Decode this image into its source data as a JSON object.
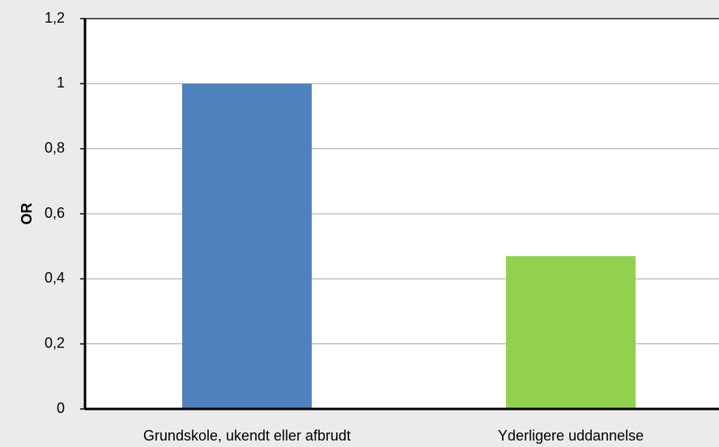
{
  "chart_data": {
    "type": "bar",
    "y_label": "OR",
    "categories": [
      "Grundskole, ukendt eller afbrudt",
      "Yderligere uddannelse"
    ],
    "values": [
      1,
      0.47
    ],
    "colors": [
      "#4f81bd",
      "#92d050"
    ],
    "ylim": [
      0,
      1.2
    ],
    "yticks": [
      0,
      {
        "value": 0.2,
        "label": "0,2"
      },
      {
        "value": 0.4,
        "label": "0,4"
      },
      {
        "value": 0.6,
        "label": "0,6"
      },
      {
        "value": 0.8,
        "label": "0,8"
      },
      1,
      {
        "value": 1.2,
        "label": "1,2"
      }
    ],
    "grid": true
  }
}
